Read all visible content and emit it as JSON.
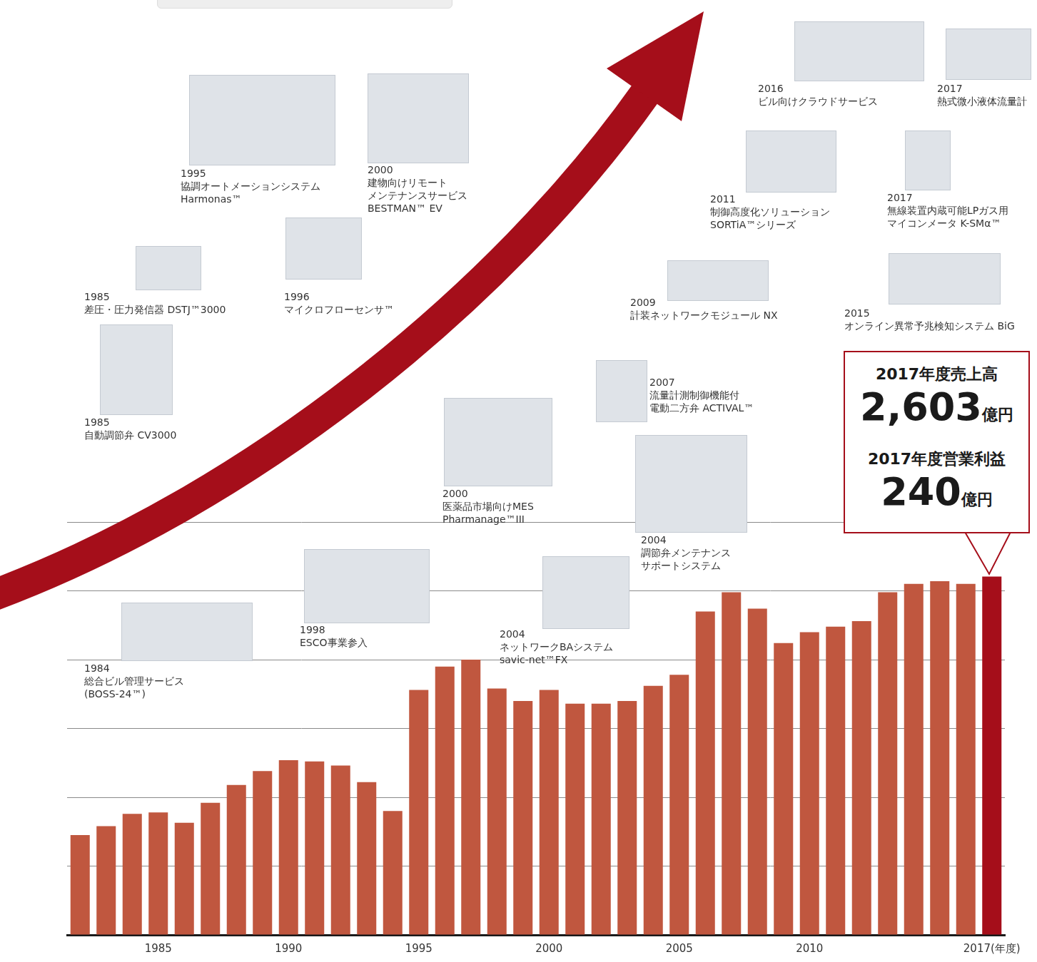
{
  "chart_data": {
    "type": "bar",
    "categories": [
      null,
      null,
      null,
      "1985",
      null,
      null,
      null,
      null,
      "1990",
      null,
      null,
      null,
      null,
      "1995",
      null,
      null,
      null,
      null,
      "2000",
      null,
      null,
      null,
      null,
      "2005",
      null,
      null,
      null,
      null,
      "2010",
      null,
      null,
      null,
      null,
      null,
      null,
      "2017(年度)"
    ],
    "values": [
      725,
      790,
      880,
      890,
      815,
      960,
      1090,
      1190,
      1270,
      1260,
      1230,
      1110,
      900,
      1780,
      1950,
      2000,
      1790,
      1700,
      1780,
      1680,
      1680,
      1700,
      1810,
      1890,
      2350,
      2490,
      2370,
      2120,
      2200,
      2240,
      2280,
      2490,
      2550,
      2570,
      2550,
      2603
    ],
    "colors": [
      "#c0573f",
      "#c0573f",
      "#c0573f",
      "#c0573f",
      "#c0573f",
      "#c0573f",
      "#c0573f",
      "#c0573f",
      "#c0573f",
      "#c0573f",
      "#c0573f",
      "#c0573f",
      "#c0573f",
      "#c0573f",
      "#c0573f",
      "#c0573f",
      "#c0573f",
      "#c0573f",
      "#c0573f",
      "#c0573f",
      "#c0573f",
      "#c0573f",
      "#c0573f",
      "#c0573f",
      "#c0573f",
      "#c0573f",
      "#c0573f",
      "#c0573f",
      "#c0573f",
      "#c0573f",
      "#c0573f",
      "#c0573f",
      "#c0573f",
      "#c0573f",
      "#c0573f",
      "#a50e1a"
    ],
    "ylim": [
      0,
      3000
    ],
    "yticks": [
      0,
      500,
      1000,
      1500,
      2000,
      2500,
      3000
    ],
    "grid": true,
    "tick_labels": "x"
  },
  "annotations": [
    {
      "year": "1984",
      "lines": [
        "総合ビル管理サービス",
        "(BOSS-24™)"
      ]
    },
    {
      "year": "1985",
      "lines": [
        "自動調節弁 CV3000"
      ]
    },
    {
      "year": "1985",
      "lines": [
        "差圧・圧力発信器 DSTJ™3000"
      ]
    },
    {
      "year": "1995",
      "lines": [
        "協調オートメーションシステム",
        "Harmonas™"
      ]
    },
    {
      "year": "1996",
      "lines": [
        "マイクロフローセンサ™"
      ]
    },
    {
      "year": "1998",
      "lines": [
        "ESCO事業参入"
      ]
    },
    {
      "year": "2000",
      "lines": [
        "建物向けリモート",
        "メンテナンスサービス",
        "BESTMAN™ EV"
      ]
    },
    {
      "year": "2000",
      "lines": [
        "医薬品市場向けMES",
        "Pharmanage™III"
      ]
    },
    {
      "year": "2004",
      "lines": [
        "ネットワークBAシステム",
        "savic-net™FX"
      ]
    },
    {
      "year": "2004",
      "lines": [
        "調節弁メンテナンス",
        "サポートシステム"
      ]
    },
    {
      "year": "2007",
      "lines": [
        "流量計測制御機能付",
        "電動二方弁 ACTIVAL™"
      ]
    },
    {
      "year": "2009",
      "lines": [
        "計装ネットワークモジュール NX"
      ]
    },
    {
      "year": "2011",
      "lines": [
        "制御高度化ソリューション",
        "SORTiA™シリーズ"
      ]
    },
    {
      "year": "2015",
      "lines": [
        "オンライン異常予兆検知システム BiG"
      ]
    },
    {
      "year": "2016",
      "lines": [
        "ビル向けクラウドサービス"
      ]
    },
    {
      "year": "2017",
      "lines": [
        "熱式微小液体流量計"
      ]
    },
    {
      "year": "2017",
      "lines": [
        "無線装置内蔵可能LPガス用",
        "マイコンメータ K-SMα™"
      ]
    }
  ],
  "callout": {
    "sales_label": "2017年度売上高",
    "sales_value": "2,603",
    "sales_unit": "億円",
    "profit_label": "2017年度営業利益",
    "profit_value": "240",
    "profit_unit": "億円"
  }
}
